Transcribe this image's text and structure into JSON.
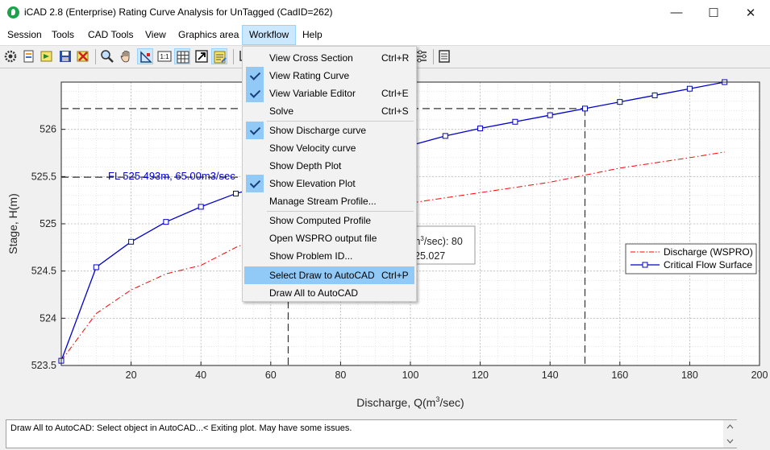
{
  "window": {
    "title": "iCAD 2.8  (Enterprise) Rating Curve Analysis for UnTagged (CadID=262)",
    "minimize_glyph": "—",
    "maximize_glyph": "☐",
    "close_glyph": "✕"
  },
  "menubar": {
    "items": [
      "Session",
      "Tools",
      "CAD Tools",
      "View",
      "Graphics area",
      "Workflow",
      "Help"
    ]
  },
  "toolbar": {
    "icons": [
      "gear-icon",
      "new-document-icon",
      "run-icon",
      "save-icon",
      "delete-icon",
      "zoom-icon",
      "pan-hand-icon",
      "select-point-icon",
      "one-to-one-icon",
      "grid-icon",
      "export-icon",
      "notes-icon",
      "crop-icon",
      "table-icon",
      "options-icon",
      "report-icon"
    ]
  },
  "workflow_menu": {
    "items": [
      {
        "label": "View Cross Section",
        "shortcut": "Ctrl+R",
        "checked": false,
        "highlighted": false
      },
      {
        "label": "View Rating Curve",
        "shortcut": "",
        "checked": true,
        "highlighted": false
      },
      {
        "label": "View Variable Editor",
        "shortcut": "Ctrl+E",
        "checked": true,
        "highlighted": false
      },
      {
        "label": "Solve",
        "shortcut": "Ctrl+S",
        "checked": false,
        "highlighted": false
      },
      {
        "label": "Show Discharge curve",
        "shortcut": "",
        "checked": true,
        "highlighted": false
      },
      {
        "label": "Show Velocity curve",
        "shortcut": "",
        "checked": false,
        "highlighted": false
      },
      {
        "label": "Show Depth Plot",
        "shortcut": "",
        "checked": false,
        "highlighted": false
      },
      {
        "label": "Show Elevation Plot",
        "shortcut": "",
        "checked": true,
        "highlighted": false
      },
      {
        "label": "Manage Stream Profile...",
        "shortcut": "",
        "checked": false,
        "highlighted": false
      },
      {
        "label": "Show Computed Profile",
        "shortcut": "",
        "checked": false,
        "highlighted": false
      },
      {
        "label": "Open WSPRO output file",
        "shortcut": "",
        "checked": false,
        "highlighted": false
      },
      {
        "label": "Show Problem ID...",
        "shortcut": "",
        "checked": false,
        "highlighted": false
      },
      {
        "label": "Select Draw to AutoCAD",
        "shortcut": "Ctrl+P",
        "checked": false,
        "highlighted": true
      },
      {
        "label": "Draw All to AutoCAD",
        "shortcut": "",
        "checked": false,
        "highlighted": false
      }
    ]
  },
  "chart_data": {
    "type": "line",
    "xlabel": "Discharge, Q(m",
    "xlabel_sup": "3",
    "xlabel_tail": "/sec)",
    "ylabel": "Stage, H(m)",
    "xlim": [
      0,
      200
    ],
    "ylim": [
      523.5,
      526.5
    ],
    "x_ticks": [
      20,
      40,
      60,
      80,
      100,
      120,
      140,
      160,
      180,
      200
    ],
    "x_tick_labels": [
      "20",
      "40",
      "60",
      "80",
      "100",
      "120",
      "140",
      "160",
      "180",
      "200"
    ],
    "y_ticks": [
      523.5,
      524,
      524.5,
      525,
      525.5,
      526
    ],
    "y_tick_labels": [
      "523.5",
      "524",
      "524.5",
      "525",
      "525.5",
      "526"
    ],
    "grid": true,
    "legend_position": "right",
    "series": [
      {
        "name": "Discharge (WSPRO)",
        "color": "#ff0000",
        "style": "dash-dot",
        "marker": "none",
        "x": [
          0,
          10,
          20,
          30,
          40,
          50,
          60,
          80,
          100,
          120,
          140,
          160,
          180,
          190
        ],
        "y": [
          523.55,
          524.05,
          524.3,
          524.47,
          524.56,
          524.75,
          524.9,
          525.1,
          525.22,
          525.33,
          525.44,
          525.59,
          525.7,
          525.76
        ]
      },
      {
        "name": "Critical Flow Surface",
        "color": "#0000cc",
        "style": "solid",
        "marker": "square",
        "x": [
          0,
          10,
          20,
          30,
          40,
          50,
          110,
          120,
          130,
          140,
          150,
          160,
          170,
          180,
          190
        ],
        "y": [
          523.55,
          524.54,
          524.81,
          525.02,
          525.18,
          525.32,
          525.93,
          526.01,
          526.08,
          526.15,
          526.22,
          526.29,
          526.36,
          526.43,
          526.5
        ]
      }
    ],
    "ref_lines": [
      {
        "x": 65,
        "y": 525.493
      },
      {
        "x": 150,
        "y": 526.22
      }
    ],
    "annotation_label": "FL 525.493m, 65.00m3/sec",
    "tooltip_line1": "m",
    "tooltip_line1_sup": "3",
    "tooltip_line1_tail": "/sec): 80",
    "tooltip_line2": "25.027"
  },
  "status": {
    "text": "Draw All to AutoCAD: Select object in AutoCAD...< Exiting plot. May have some issues."
  },
  "colors": {
    "menu_highlight": "#91c9f7",
    "active_menu": "#cce8ff"
  }
}
